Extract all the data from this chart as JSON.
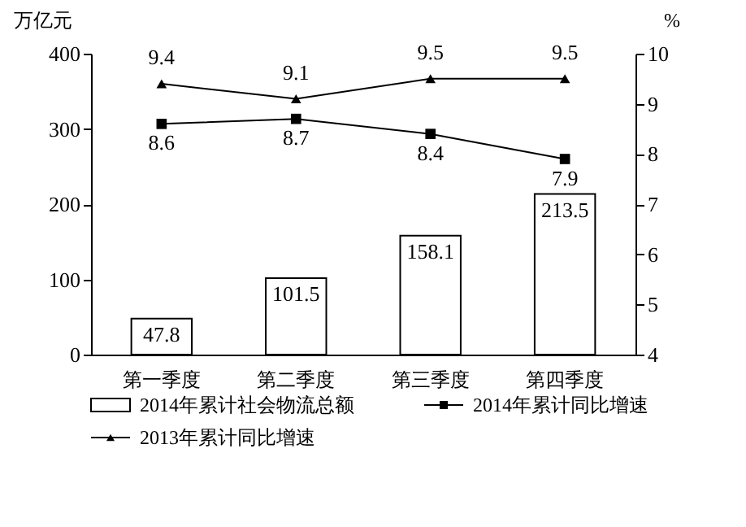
{
  "chart_data": {
    "type": "bar",
    "ylabel": "万亿元",
    "y2label": "%",
    "categories": [
      "第一季度",
      "第二季度",
      "第三季度",
      "第四季度"
    ],
    "series": [
      {
        "name": "2014年累计社会物流总额",
        "color": "#ffffff",
        "values": [
          47.8,
          101.5,
          158.1,
          213.5
        ]
      },
      {
        "name": "2014年累计同比增速",
        "type": "line",
        "axis": "y2",
        "marker": "square",
        "color": "#000000",
        "values": [
          8.6,
          8.7,
          8.4,
          7.9
        ]
      },
      {
        "name": "2013年累计同比增速",
        "type": "line",
        "axis": "y2",
        "marker": "triangle",
        "color": "#000000",
        "values": [
          9.4,
          9.1,
          9.5,
          9.5
        ]
      }
    ],
    "ylim": [
      0,
      400
    ],
    "yticks": [
      0,
      100,
      200,
      300,
      400
    ],
    "y2lim": [
      4,
      10
    ],
    "y2ticks": [
      4,
      5,
      6,
      7,
      8,
      9,
      10
    ],
    "data_labels": true,
    "grid": false,
    "legend": "bottom",
    "line_style": "solid"
  }
}
